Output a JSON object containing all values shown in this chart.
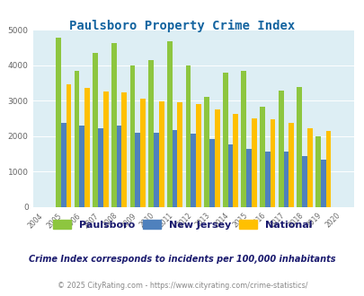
{
  "title": "Paulsboro Property Crime Index",
  "years": [
    "2004",
    "2005",
    "2006",
    "2007",
    "2008",
    "2009",
    "2010",
    "2011",
    "2012",
    "2013",
    "2014",
    "2015",
    "2016",
    "2017",
    "2018",
    "2019",
    "2020"
  ],
  "paulsboro": [
    0,
    4780,
    3850,
    4350,
    4620,
    4000,
    4150,
    4680,
    3980,
    3100,
    3780,
    3840,
    2840,
    3290,
    3380,
    1990,
    0
  ],
  "new_jersey": [
    0,
    2370,
    2290,
    2220,
    2300,
    2100,
    2100,
    2160,
    2070,
    1930,
    1760,
    1650,
    1560,
    1570,
    1430,
    1330,
    0
  ],
  "national": [
    0,
    3460,
    3360,
    3260,
    3240,
    3060,
    2970,
    2960,
    2900,
    2760,
    2620,
    2510,
    2480,
    2380,
    2210,
    2150,
    0
  ],
  "bar_width": 0.28,
  "paulsboro_color": "#8dc63f",
  "nj_color": "#4f81bd",
  "national_color": "#ffc000",
  "bg_color": "#ddeef4",
  "ylim": [
    0,
    5000
  ],
  "yticks": [
    0,
    1000,
    2000,
    3000,
    4000,
    5000
  ],
  "subtitle": "Crime Index corresponds to incidents per 100,000 inhabitants",
  "footer": "© 2025 CityRating.com - https://www.cityrating.com/crime-statistics/",
  "legend_labels": [
    "Paulsboro",
    "New Jersey",
    "National"
  ],
  "title_color": "#1464a0",
  "subtitle_color": "#1a1a6e",
  "footer_color": "#888888",
  "footer_link_color": "#1464a0"
}
